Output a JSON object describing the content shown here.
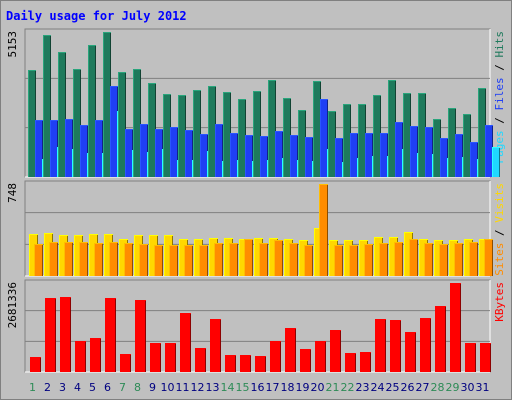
{
  "title": "Daily usage for July 2012",
  "colors": {
    "hits": "#1e7a5c",
    "files": "#1f3ff5",
    "pages": "#1fd8ff",
    "visits": "#ffd700",
    "sites": "#ff8c00",
    "kbytes": "#ff0000",
    "weekend_label": "#2e8b57",
    "weekday_label": "#000080",
    "legend_separator": "#000000",
    "title": "#0000ff"
  },
  "chart_data": [
    {
      "type": "bar",
      "name": "hits-files-pages",
      "ymax_label": "5153",
      "ylim": [
        0,
        5153
      ],
      "legend": [
        "Pages",
        "Files",
        "Hits"
      ],
      "categories": [
        "1",
        "2",
        "3",
        "4",
        "5",
        "6",
        "7",
        "8",
        "9",
        "10",
        "11",
        "12",
        "13",
        "14",
        "15",
        "16",
        "17",
        "18",
        "19",
        "20",
        "21",
        "22",
        "23",
        "24",
        "25",
        "26",
        "27",
        "28",
        "29",
        "30",
        "31"
      ],
      "series": [
        {
          "name": "Hits",
          "values": [
            3790,
            5030,
            4450,
            3830,
            4700,
            5153,
            3740,
            3850,
            3330,
            2950,
            2900,
            3090,
            3230,
            3010,
            2780,
            3050,
            3440,
            2800,
            2390,
            3420,
            2330,
            2580,
            2610,
            2930,
            3440,
            3000,
            3000,
            2060,
            2460,
            2230,
            3180
          ]
        },
        {
          "name": "Files",
          "values": [
            2020,
            2010,
            2070,
            1860,
            2010,
            3240,
            1720,
            1880,
            1690,
            1760,
            1670,
            1530,
            1880,
            1560,
            1500,
            1450,
            1630,
            1490,
            1430,
            2780,
            1380,
            1560,
            1580,
            1580,
            1950,
            1800,
            1790,
            1380,
            1520,
            1230,
            1860
          ]
        },
        {
          "name": "Pages",
          "values": [
            650,
            1050,
            1000,
            850,
            850,
            2340,
            960,
            890,
            980,
            620,
            600,
            940,
            560,
            600,
            560,
            610,
            660,
            600,
            570,
            1000,
            520,
            690,
            740,
            740,
            1000,
            850,
            800,
            660,
            720,
            630,
            1050
          ]
        }
      ]
    },
    {
      "type": "bar",
      "name": "visits-sites",
      "ymax_label": "748",
      "ylim": [
        0,
        748
      ],
      "legend": [
        "Sites",
        "Visits"
      ],
      "categories": [
        "1",
        "2",
        "3",
        "4",
        "5",
        "6",
        "7",
        "8",
        "9",
        "10",
        "11",
        "12",
        "13",
        "14",
        "15",
        "16",
        "17",
        "18",
        "19",
        "20",
        "21",
        "22",
        "23",
        "24",
        "25",
        "26",
        "27",
        "28",
        "29",
        "30",
        "31"
      ],
      "series": [
        {
          "name": "Visits",
          "values": [
            340,
            350,
            330,
            330,
            340,
            340,
            300,
            330,
            330,
            330,
            300,
            300,
            310,
            310,
            300,
            310,
            310,
            300,
            290,
            390,
            290,
            290,
            290,
            320,
            320,
            360,
            300,
            290,
            290,
            300,
            300
          ]
        },
        {
          "name": "Sites",
          "values": [
            260,
            280,
            280,
            280,
            270,
            280,
            270,
            260,
            250,
            250,
            250,
            250,
            270,
            270,
            300,
            270,
            290,
            270,
            250,
            748,
            250,
            250,
            260,
            270,
            280,
            300,
            270,
            260,
            270,
            280,
            300
          ]
        }
      ]
    },
    {
      "type": "bar",
      "name": "kbytes",
      "ymax_label": "2681336",
      "ylim": [
        0,
        2681336
      ],
      "legend": [
        "KBytes"
      ],
      "categories": [
        "1",
        "2",
        "3",
        "4",
        "5",
        "6",
        "7",
        "8",
        "9",
        "10",
        "11",
        "12",
        "13",
        "14",
        "15",
        "16",
        "17",
        "18",
        "19",
        "20",
        "21",
        "22",
        "23",
        "24",
        "25",
        "26",
        "27",
        "28",
        "29",
        "30",
        "31"
      ],
      "series": [
        {
          "name": "KBytes",
          "values": [
            460000,
            2220000,
            2270000,
            930000,
            1010000,
            2220000,
            550000,
            2170000,
            870000,
            880000,
            1790000,
            710000,
            1600000,
            500000,
            500000,
            480000,
            930000,
            1320000,
            700000,
            920000,
            1260000,
            560000,
            610000,
            1600000,
            1570000,
            1200000,
            1620000,
            2000000,
            2681336,
            860000,
            860000
          ]
        }
      ]
    }
  ]
}
